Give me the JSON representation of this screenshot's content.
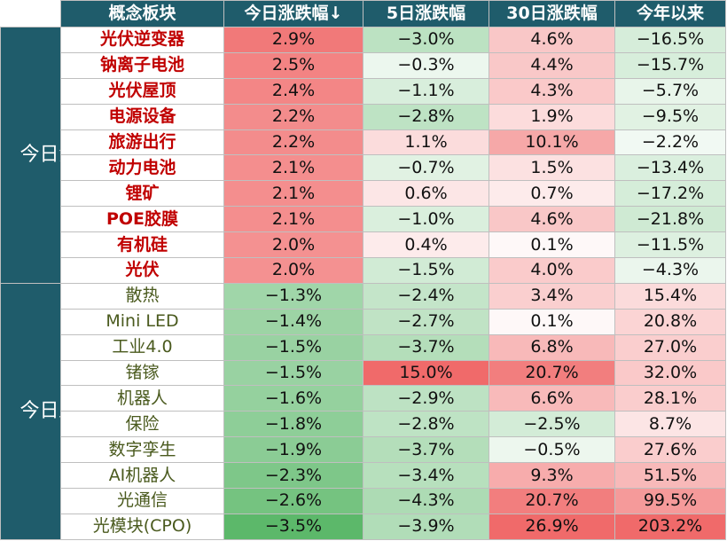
{
  "chart_data": {
    "type": "heatmap",
    "columns": [
      "概念板块",
      "今日涨跌幅↓",
      "5日涨跌幅",
      "30日涨跌幅",
      "今年以来"
    ],
    "value_unit": "%",
    "colors": {
      "header_bg": "#1f5c6b",
      "positive": "#f06a6a",
      "negative": "#5cb86a",
      "up_name": "#c00000",
      "down_name": "#4a5a1e"
    },
    "groups": [
      {
        "label": "今日涨幅前十",
        "rows": [
          {
            "name": "光伏逆变器",
            "values": [
              2.9,
              -3.0,
              4.6,
              -16.5
            ]
          },
          {
            "name": "钠离子电池",
            "values": [
              2.5,
              -0.3,
              4.4,
              -15.7
            ]
          },
          {
            "name": "光伏屋顶",
            "values": [
              2.4,
              -1.1,
              4.3,
              -5.7
            ]
          },
          {
            "name": "电源设备",
            "values": [
              2.2,
              -2.8,
              1.9,
              -9.5
            ]
          },
          {
            "name": "旅游出行",
            "values": [
              2.2,
              1.1,
              10.1,
              -2.2
            ]
          },
          {
            "name": "动力电池",
            "values": [
              2.1,
              -0.7,
              1.5,
              -13.4
            ]
          },
          {
            "name": "锂矿",
            "values": [
              2.1,
              0.6,
              0.7,
              -17.2
            ]
          },
          {
            "name": "POE胶膜",
            "values": [
              2.1,
              -1.0,
              4.6,
              -21.8
            ]
          },
          {
            "name": "有机硅",
            "values": [
              2.0,
              0.4,
              0.1,
              -11.5
            ]
          },
          {
            "name": "光伏",
            "values": [
              2.0,
              -1.5,
              4.0,
              -4.3
            ]
          }
        ]
      },
      {
        "label": "今日跌幅前十",
        "rows": [
          {
            "name": "散热",
            "values": [
              -1.3,
              -2.4,
              3.4,
              15.4
            ]
          },
          {
            "name": "Mini LED",
            "values": [
              -1.4,
              -2.7,
              0.1,
              20.8
            ]
          },
          {
            "name": "工业4.0",
            "values": [
              -1.5,
              -3.7,
              6.8,
              27.0
            ]
          },
          {
            "name": "锗镓",
            "values": [
              -1.5,
              15.0,
              20.7,
              32.0
            ]
          },
          {
            "name": "机器人",
            "values": [
              -1.6,
              -2.9,
              6.6,
              28.1
            ]
          },
          {
            "name": "保险",
            "values": [
              -1.8,
              -2.8,
              -2.5,
              8.7
            ]
          },
          {
            "name": "数字孪生",
            "values": [
              -1.9,
              -3.7,
              -0.5,
              27.6
            ]
          },
          {
            "name": "AI机器人",
            "values": [
              -2.3,
              -3.4,
              9.3,
              51.5
            ]
          },
          {
            "name": "光通信",
            "values": [
              -2.6,
              -4.3,
              20.7,
              99.5
            ]
          },
          {
            "name": "光模块(CPO)",
            "values": [
              -3.5,
              -3.9,
              26.9,
              203.2
            ]
          }
        ]
      }
    ]
  }
}
